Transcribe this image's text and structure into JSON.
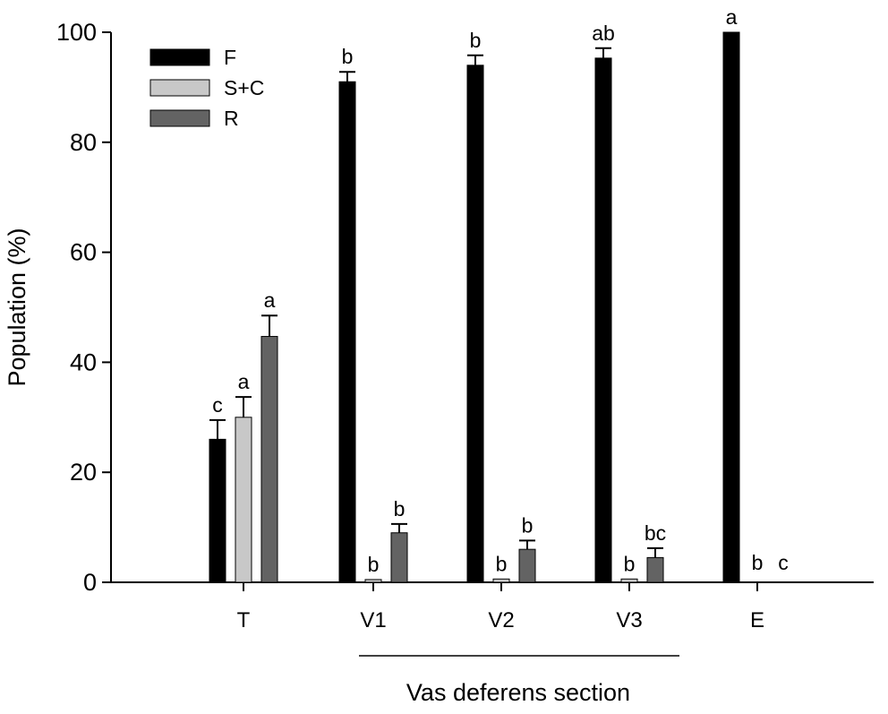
{
  "chart_data": {
    "type": "bar",
    "ylabel": "Population (%)",
    "xlabel": "Vas deferens section",
    "ylim": [
      0,
      100
    ],
    "yticks": [
      0,
      20,
      40,
      60,
      80,
      100
    ],
    "grid": false,
    "legend_position": "top-left",
    "categories": [
      "T",
      "V1",
      "V2",
      "V3",
      "E"
    ],
    "group_bracket": {
      "label": "Vas deferens section",
      "spans": [
        "V1",
        "V3"
      ]
    },
    "series": [
      {
        "name": "F",
        "color": "#000000",
        "values": [
          26,
          91,
          94,
          95.3,
          100
        ],
        "errors": [
          3.5,
          1.8,
          1.8,
          1.8,
          0
        ],
        "sig_labels": [
          "c",
          "b",
          "b",
          "ab",
          "a"
        ]
      },
      {
        "name": "S+C",
        "color": "#c8c8c8",
        "values": [
          30,
          0.5,
          0.6,
          0.6,
          0
        ],
        "errors": [
          3.7,
          0,
          0,
          0,
          0
        ],
        "sig_labels": [
          "a",
          "b",
          "b",
          "b",
          "b"
        ]
      },
      {
        "name": "R",
        "color": "#636363",
        "values": [
          44.7,
          9,
          6,
          4.5,
          0
        ],
        "errors": [
          3.8,
          1.6,
          1.6,
          1.7,
          0
        ],
        "sig_labels": [
          "a",
          "b",
          "b",
          "bc",
          "c"
        ]
      }
    ]
  }
}
